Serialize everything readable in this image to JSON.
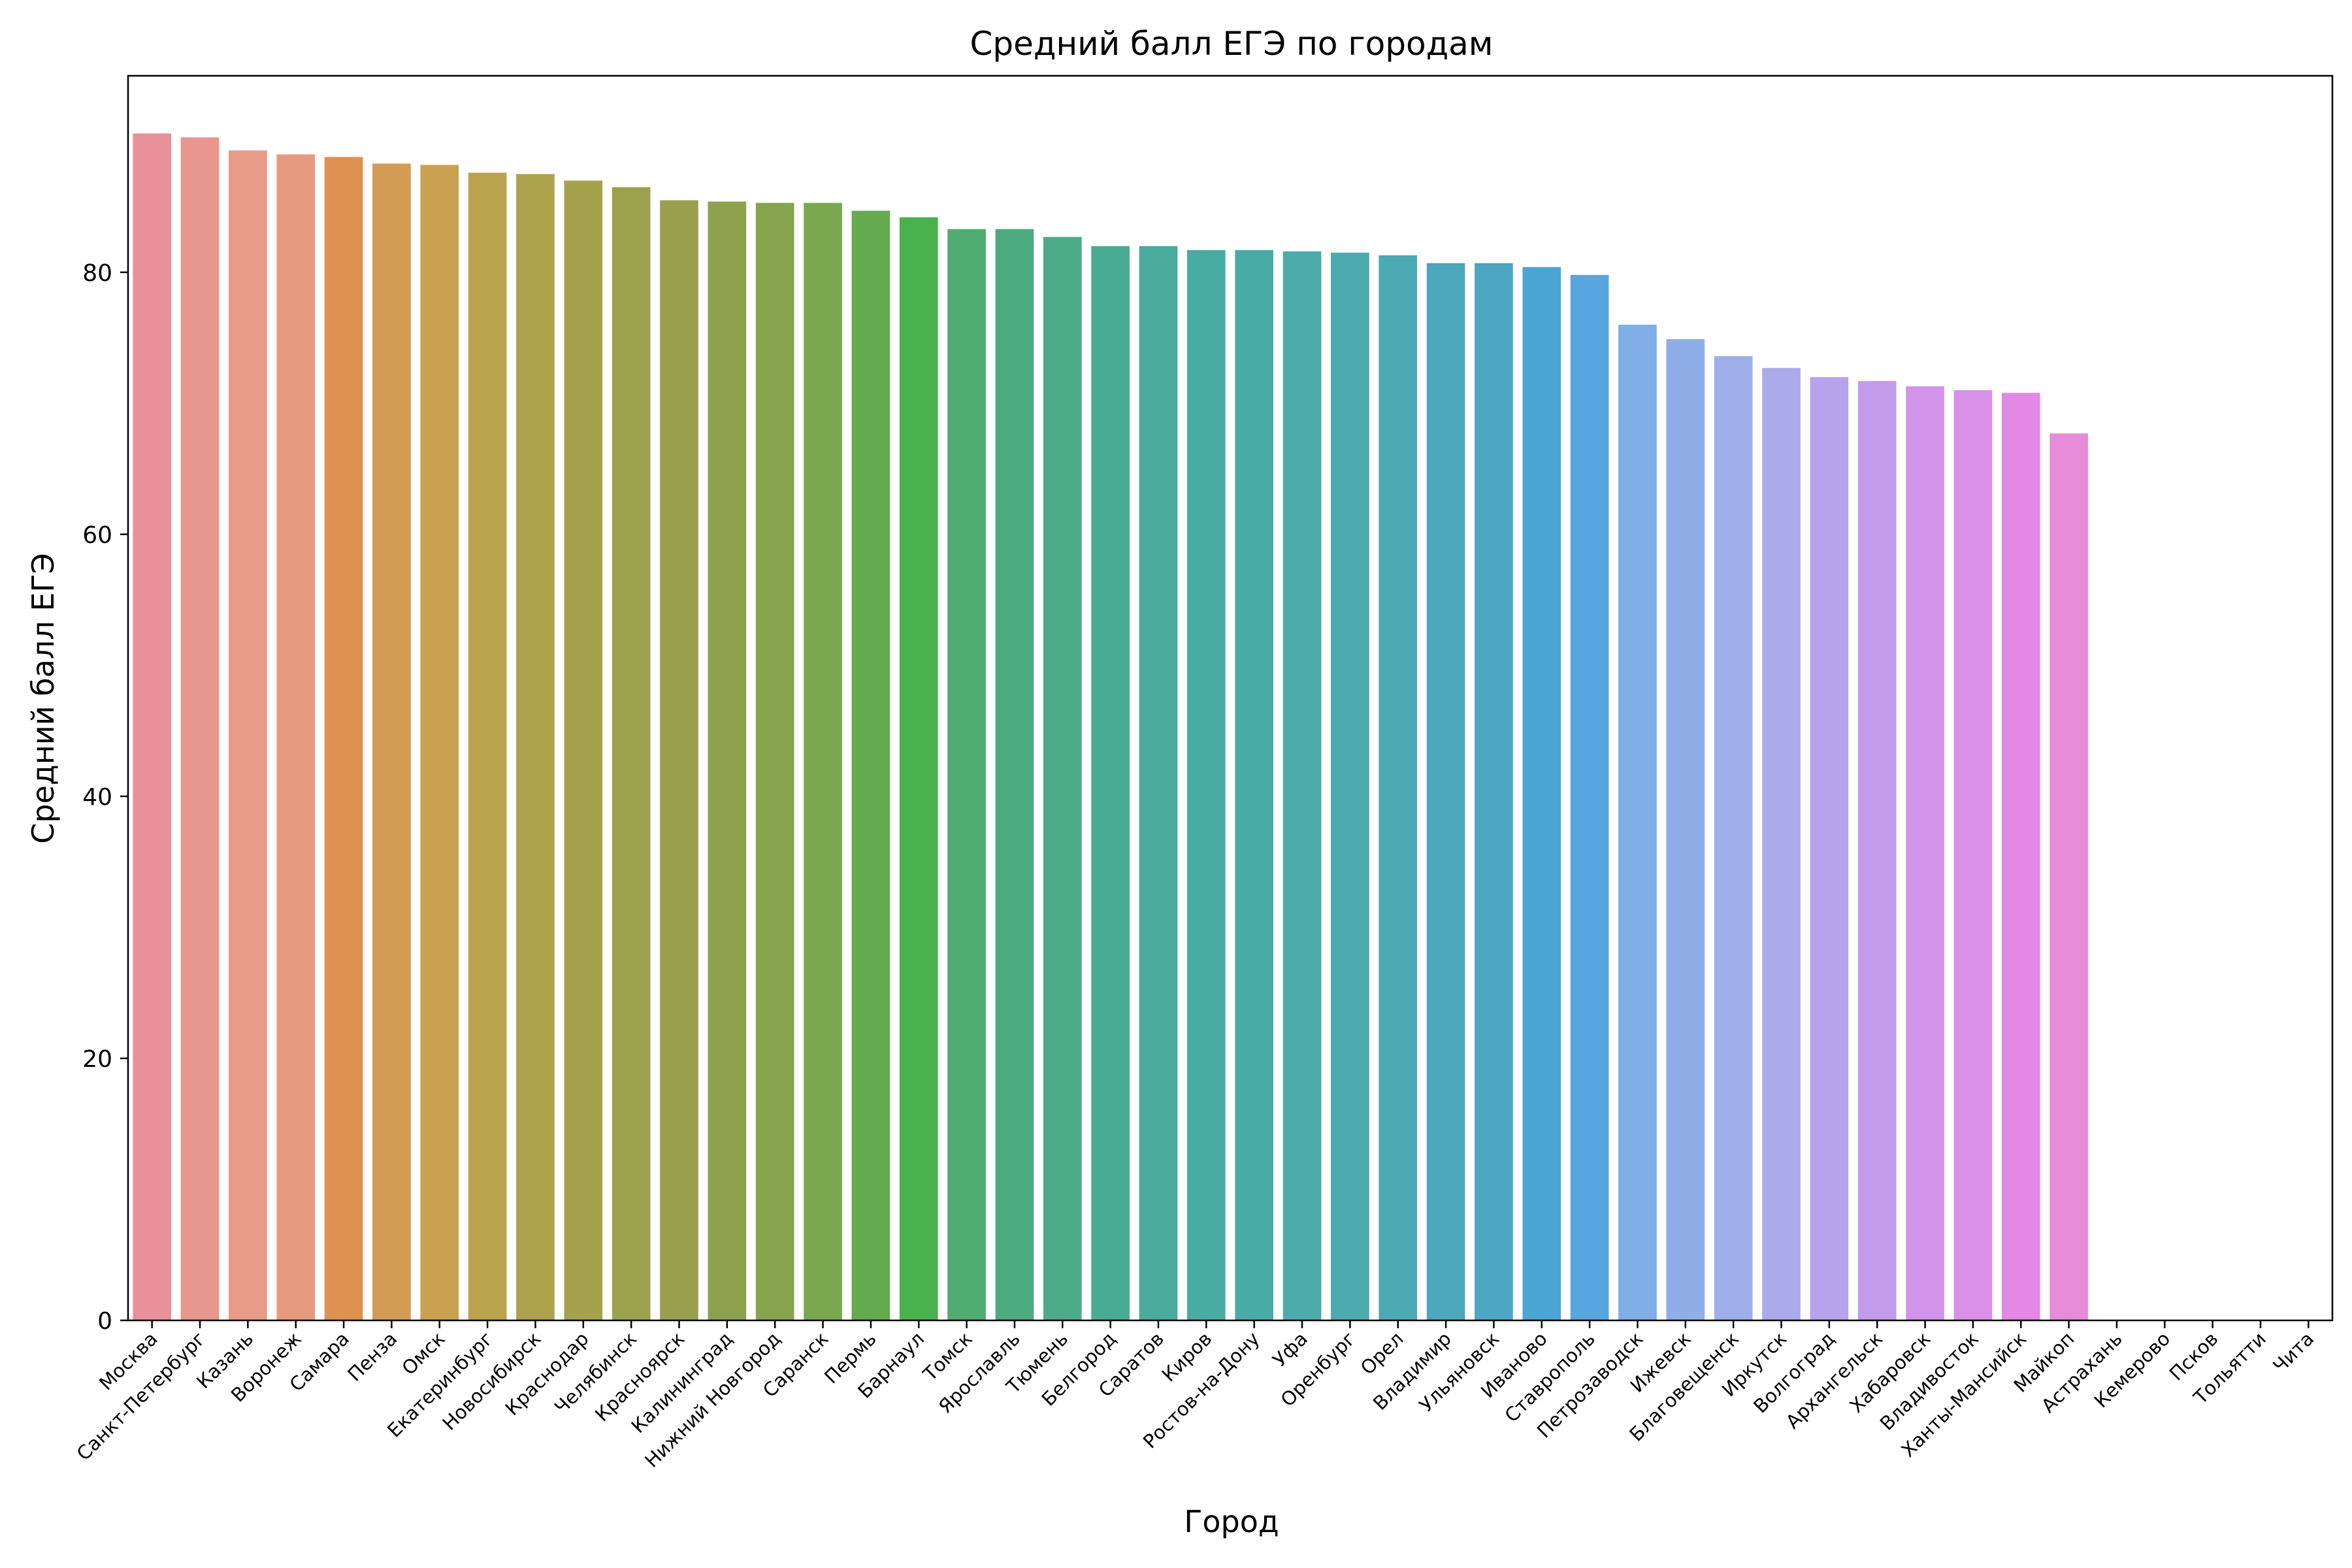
{
  "chart_data": {
    "type": "bar",
    "title": "Средний балл ЕГЭ по городам",
    "xlabel": "Город",
    "ylabel": "Средний балл ЕГЭ",
    "ylim": [
      0,
      95
    ],
    "yticks": [
      0,
      20,
      40,
      60,
      80
    ],
    "grid": false,
    "categories": [
      "Москва",
      "Санкт-Петербург",
      "Казань",
      "Воронеж",
      "Самара",
      "Пенза",
      "Омск",
      "Екатеринбург",
      "Новосибирск",
      "Краснодар",
      "Челябинск",
      "Красноярск",
      "Калининград",
      "Нижний Новгород",
      "Саранск",
      "Пермь",
      "Барнаул",
      "Томск",
      "Ярославль",
      "Тюмень",
      "Белгород",
      "Саратов",
      "Киров",
      "Ростов-на-Дону",
      "Уфа",
      "Оренбург",
      "Орел",
      "Владимир",
      "Ульяновск",
      "Иваново",
      "Ставрополь",
      "Петрозаводск",
      "Ижевск",
      "Благовещенск",
      "Иркутск",
      "Волгоград",
      "Архангельск",
      "Хабаровск",
      "Владивосток",
      "Ханты-Мансийск",
      "Майкоп",
      "Астрахань",
      "Кемерово",
      "Псков",
      "Тольятти",
      "Чита"
    ],
    "values": [
      90.6,
      90.3,
      89.3,
      89.0,
      88.8,
      88.3,
      88.2,
      87.6,
      87.5,
      87.0,
      86.5,
      85.5,
      85.4,
      85.3,
      85.3,
      84.7,
      84.2,
      83.3,
      83.3,
      82.7,
      82.0,
      82.0,
      81.7,
      81.7,
      81.6,
      81.5,
      81.3,
      80.7,
      80.7,
      80.4,
      79.8,
      76.0,
      74.9,
      73.6,
      72.7,
      72.0,
      71.7,
      71.3,
      71.0,
      70.8,
      67.7,
      0,
      0,
      0,
      0,
      0
    ],
    "colors": [
      "#e8919a",
      "#e8978f",
      "#e89a88",
      "#e69a7d",
      "#df9150",
      "#d39c55",
      "#c9a150",
      "#b9a34d",
      "#aea24c",
      "#a4a24c",
      "#9ba24c",
      "#99a04d",
      "#8ea24d",
      "#86a44d",
      "#7aa84f",
      "#63ab4e",
      "#4ab14c",
      "#50ad72",
      "#4cab7e",
      "#4cab88",
      "#49ab93",
      "#48ab9c",
      "#48aca2",
      "#48aba6",
      "#4aabaa",
      "#4baaad",
      "#4aa9b3",
      "#4ba7bb",
      "#4ca7c3",
      "#4aa5d3",
      "#58a6df",
      "#80aee6",
      "#8faee8",
      "#9daee9",
      "#abaaeb",
      "#b5a4eb",
      "#c29bea",
      "#d194e8",
      "#d88fe6",
      "#e189e4",
      "#e68bd8",
      "#e88ccf",
      "#e88cc5",
      "#e88db9",
      "#e88faf",
      "#e890a5"
    ]
  }
}
